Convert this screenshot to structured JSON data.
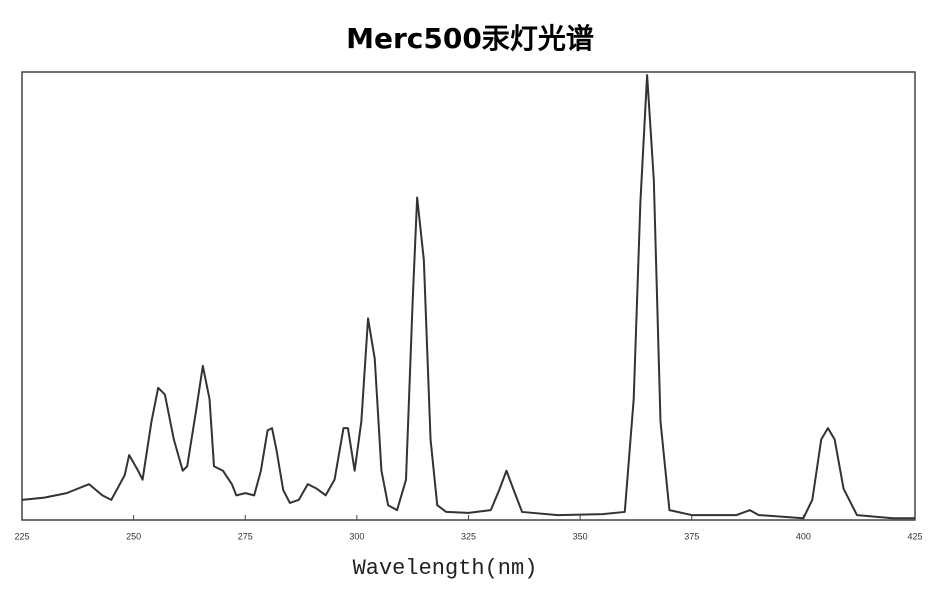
{
  "chart_data": {
    "type": "line",
    "title": "Merc500汞灯光谱",
    "x_label": "Wavelength(nm)",
    "x": [
      225,
      230,
      235,
      240,
      243,
      245,
      248,
      249,
      251,
      252,
      254,
      255.5,
      257,
      259,
      261,
      262,
      264,
      265.5,
      267,
      268,
      270,
      272,
      273,
      275,
      277,
      278.5,
      280,
      281,
      282,
      283.5,
      285,
      287,
      289,
      291,
      293,
      295,
      297,
      298,
      299.5,
      301,
      302.5,
      304,
      305.5,
      307,
      309,
      311,
      312.5,
      313.5,
      315,
      316.5,
      318,
      320,
      325,
      330,
      332,
      333.5,
      335,
      337,
      345,
      355,
      360,
      362,
      363.5,
      365,
      366.5,
      368,
      370,
      375,
      385,
      388,
      390,
      400,
      402,
      404,
      405.5,
      407,
      409,
      412,
      420,
      425
    ],
    "series": [
      {
        "color": "#333333",
        "values": [
          4.5,
          5,
          6,
          8,
          5.5,
          4.5,
          10,
          14.5,
          11,
          9,
          22,
          29.5,
          28,
          18,
          11,
          12,
          24.5,
          34.4,
          27,
          12,
          11,
          8,
          5.5,
          6,
          5.5,
          11,
          20,
          20.5,
          15.6,
          6.7,
          3.8,
          4.5,
          8,
          7,
          5.5,
          9,
          20.5,
          20.5,
          11,
          22,
          45,
          36,
          11,
          3.3,
          2.2,
          9,
          49,
          72,
          58,
          18,
          3.3,
          1.8,
          1.6,
          2.2,
          7,
          11,
          7,
          1.8,
          1.1,
          1.3,
          1.8,
          27,
          71,
          99.3,
          76,
          22,
          2.2,
          1.1,
          1.1,
          2.2,
          1.1,
          0.4,
          4.5,
          18,
          20.5,
          18,
          7,
          1.1,
          0.4,
          0.4
        ]
      }
    ],
    "xlim": [
      225,
      425
    ],
    "xticks": [
      225,
      250,
      275,
      300,
      325,
      350,
      375,
      400,
      425
    ],
    "ylim": [
      0,
      100
    ]
  }
}
